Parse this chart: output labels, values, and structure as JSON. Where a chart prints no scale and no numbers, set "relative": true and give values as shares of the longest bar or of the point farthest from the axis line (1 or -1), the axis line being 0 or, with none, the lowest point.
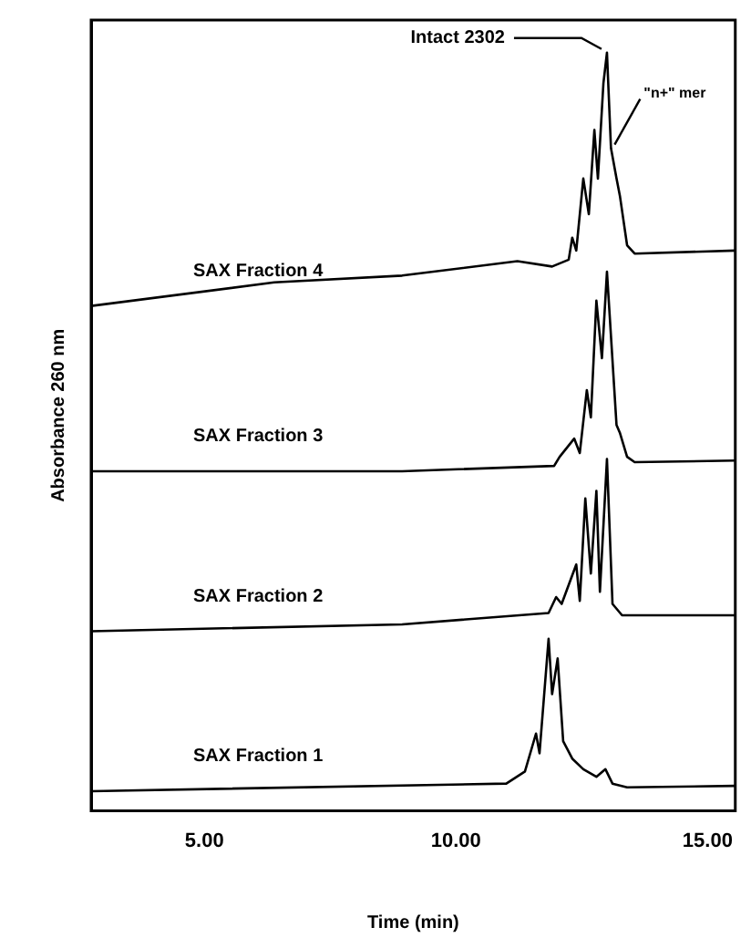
{
  "chart_data": {
    "type": "line",
    "xlabel": "Time (min)",
    "ylabel": "Absorbance 260 nm",
    "relative": true,
    "grid": false,
    "legend": false,
    "marker": "none",
    "line_style": "solid",
    "xlim": [
      2.75,
      15.55
    ],
    "xticks": [
      {
        "value": 5,
        "label": "5.00"
      },
      {
        "value": 10,
        "label": "10.00"
      },
      {
        "value": 15,
        "label": "15.00"
      }
    ],
    "annotations": [
      {
        "text": "Intact 2302",
        "x": 13.0,
        "y": 1.0
      },
      {
        "text": "\"n+\" mer",
        "x": 13.08,
        "y": 0.874
      }
    ],
    "series": [
      {
        "name": "SAX Fraction 4",
        "color": "#000000",
        "x": [
          2.75,
          6.39,
          8.93,
          11.22,
          11.91,
          12.24,
          12.31,
          12.39,
          12.53,
          12.64,
          12.75,
          12.82,
          12.93,
          13.0,
          13.08,
          13.19,
          13.26,
          13.4,
          13.55,
          15.55
        ],
        "values": [
          0.666,
          0.697,
          0.706,
          0.725,
          0.718,
          0.727,
          0.756,
          0.739,
          0.834,
          0.787,
          0.898,
          0.834,
          0.96,
          1.0,
          0.874,
          0.834,
          0.81,
          0.746,
          0.735,
          0.739
        ]
      },
      {
        "name": "SAX Fraction 3",
        "color": "#000000",
        "x": [
          2.75,
          8.93,
          11.95,
          12.06,
          12.35,
          12.46,
          12.6,
          12.68,
          12.79,
          12.9,
          13.0,
          13.19,
          13.26,
          13.4,
          13.55,
          15.55
        ],
        "values": [
          0.448,
          0.448,
          0.455,
          0.467,
          0.491,
          0.472,
          0.555,
          0.519,
          0.673,
          0.597,
          0.711,
          0.509,
          0.498,
          0.467,
          0.46,
          0.462
        ]
      },
      {
        "name": "SAX Fraction 2",
        "color": "#000000",
        "x": [
          2.75,
          8.93,
          11.84,
          11.99,
          12.1,
          12.39,
          12.46,
          12.57,
          12.68,
          12.79,
          12.86,
          13.0,
          13.11,
          13.3,
          15.55
        ],
        "values": [
          0.237,
          0.246,
          0.261,
          0.282,
          0.273,
          0.325,
          0.277,
          0.412,
          0.313,
          0.422,
          0.289,
          0.464,
          0.273,
          0.258,
          0.258
        ]
      },
      {
        "name": "SAX Fraction 1",
        "color": "#000000",
        "x": [
          2.75,
          11.0,
          11.37,
          11.59,
          11.66,
          11.84,
          11.91,
          12.02,
          12.13,
          12.31,
          12.53,
          12.79,
          12.97,
          13.11,
          13.4,
          15.55
        ],
        "values": [
          0.026,
          0.036,
          0.052,
          0.102,
          0.076,
          0.227,
          0.154,
          0.201,
          0.092,
          0.069,
          0.055,
          0.045,
          0.055,
          0.036,
          0.031,
          0.033
        ]
      }
    ]
  }
}
